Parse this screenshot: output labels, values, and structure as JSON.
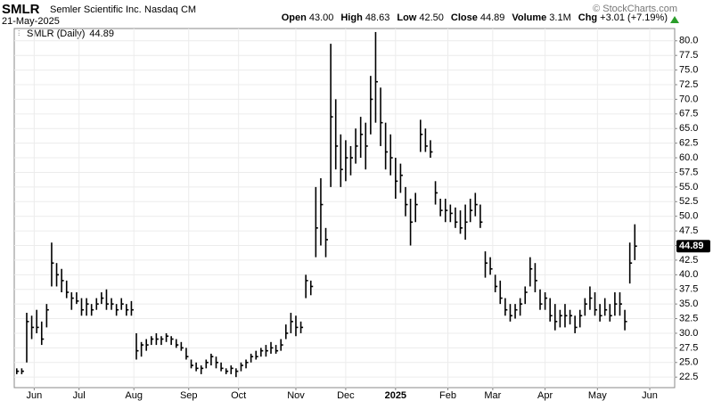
{
  "chart_data": {
    "type": "ohlc",
    "title": "SMLR",
    "subtitle": "Semler Scientific Inc.",
    "exchange": "Nasdaq CM",
    "date": "21-May-2025",
    "credit": "© StockCharts.com",
    "quote": [
      {
        "label": "Open",
        "value": "43.00"
      },
      {
        "label": "High",
        "value": "48.63"
      },
      {
        "label": "Low",
        "value": "42.50"
      },
      {
        "label": "Close",
        "value": "44.89"
      },
      {
        "label": "Volume",
        "value": "3.1M"
      },
      {
        "label": "Chg",
        "value": "+3.01 (+7.19%)"
      }
    ],
    "legend": "SMLR (Daily)",
    "color": "#000000",
    "grid": true,
    "xlim": [
      0,
      265
    ],
    "xticks": [
      {
        "value": 8,
        "label": "Jun"
      },
      {
        "value": 26,
        "label": "Jul"
      },
      {
        "value": 48,
        "label": "Aug"
      },
      {
        "value": 70,
        "label": "Sep"
      },
      {
        "value": 90,
        "label": "Oct"
      },
      {
        "value": 113,
        "label": "Nov"
      },
      {
        "value": 133,
        "label": "Dec"
      },
      {
        "value": 153,
        "label": "2025"
      },
      {
        "value": 174,
        "label": "Feb"
      },
      {
        "value": 192,
        "label": "Mar"
      },
      {
        "value": 213,
        "label": "Apr"
      },
      {
        "value": 234,
        "label": "May"
      },
      {
        "value": 255,
        "label": "Jun"
      }
    ],
    "ylim": [
      20.7,
      82.1
    ],
    "yticks": [
      22.5,
      {
        "value": 25,
        "label": "25.0"
      },
      27.5,
      {
        "value": 30,
        "label": "30.0"
      },
      32.5,
      {
        "value": 35,
        "label": "35.0"
      },
      37.5,
      {
        "value": 40,
        "label": "40.0"
      },
      42.5,
      {
        "value": 45,
        "label": "45.0"
      },
      47.5,
      {
        "value": 50,
        "label": "50.0"
      },
      52.5,
      {
        "value": 55,
        "label": "55.0"
      },
      57.5,
      {
        "value": 60,
        "label": "60.0"
      },
      62.5,
      {
        "value": 65,
        "label": "65.0"
      },
      67.5,
      {
        "value": 70,
        "label": "70.0"
      },
      72.5,
      {
        "value": 75,
        "label": "75.0"
      },
      77.5,
      {
        "value": 80,
        "label": "80.0"
      }
    ],
    "x": [
      1,
      3,
      5,
      7,
      9,
      11,
      13,
      15,
      17,
      19,
      21,
      23,
      25,
      27,
      29,
      31,
      33,
      35,
      37,
      39,
      41,
      43,
      45,
      47,
      49,
      51,
      53,
      55,
      57,
      59,
      61,
      63,
      65,
      67,
      69,
      71,
      73,
      75,
      77,
      79,
      81,
      83,
      85,
      87,
      89,
      91,
      93,
      95,
      97,
      99,
      101,
      103,
      105,
      107,
      109,
      111,
      113,
      115,
      117,
      119,
      121,
      123,
      125,
      127,
      129,
      131,
      133,
      135,
      137,
      139,
      141,
      143,
      145,
      147,
      149,
      151,
      153,
      155,
      157,
      159,
      161,
      163,
      165,
      167,
      169,
      171,
      173,
      175,
      177,
      179,
      181,
      183,
      185,
      187,
      189,
      191,
      193,
      195,
      197,
      199,
      201,
      203,
      205,
      207,
      209,
      211,
      213,
      215,
      217,
      219,
      221,
      223,
      225,
      227,
      229,
      231,
      233,
      235,
      237,
      239,
      241,
      243,
      245,
      247,
      249
    ],
    "high": [
      24,
      24,
      33.5,
      33,
      34,
      32,
      35,
      45.5,
      42,
      41,
      39,
      37,
      37,
      36,
      36,
      35,
      36,
      37,
      37.5,
      36,
      35,
      36,
      35,
      35.5,
      30,
      28.5,
      29,
      29.5,
      30,
      29.5,
      30,
      29.5,
      29,
      28.5,
      27.5,
      25.5,
      25,
      24.5,
      25.5,
      26.5,
      26,
      25,
      24,
      24.5,
      24,
      25,
      25.5,
      26.5,
      27,
      27.5,
      28,
      28.5,
      28,
      29,
      31.5,
      33.5,
      33,
      32,
      40,
      39,
      55,
      56.5,
      48,
      79.5,
      70,
      64,
      63,
      62,
      65,
      67,
      66,
      74,
      81.5,
      72,
      66,
      64,
      60,
      59,
      55,
      53,
      54,
      66.5,
      65,
      63,
      56,
      53,
      53,
      52,
      51.5,
      51,
      52,
      53,
      54,
      52,
      44,
      43,
      40,
      39,
      36,
      35,
      35,
      36,
      38,
      43,
      42,
      37.5,
      37,
      36,
      35,
      34,
      35,
      34,
      33,
      34,
      36,
      38,
      37,
      35,
      36,
      35,
      37,
      37,
      34,
      45.5,
      48.63
    ],
    "low": [
      23,
      23,
      25,
      29,
      30,
      28,
      31,
      38,
      38,
      37,
      36,
      34,
      35,
      33,
      33,
      33,
      34,
      35,
      34,
      34,
      33,
      34,
      33,
      33,
      25.5,
      26,
      27,
      28,
      28,
      28,
      28.5,
      28,
      27.5,
      27,
      25.5,
      24,
      23.5,
      23,
      24,
      24.5,
      24,
      23.5,
      23,
      23,
      22.5,
      23.5,
      24,
      25,
      25.5,
      26,
      26,
      26.5,
      26.5,
      27,
      29,
      30,
      29.5,
      30,
      36,
      36.5,
      43,
      45,
      43,
      55,
      58,
      55,
      56,
      57,
      59,
      60,
      58,
      64,
      66,
      62,
      58,
      57,
      53,
      54,
      50,
      45,
      49,
      61,
      61,
      60,
      52,
      50,
      49,
      49,
      48,
      47,
      46,
      49,
      50,
      48,
      39.5,
      40,
      37,
      35,
      33,
      32,
      32.5,
      33,
      35,
      38,
      37,
      34,
      34,
      32,
      30.5,
      31,
      31,
      31.5,
      30,
      31,
      33,
      34,
      33,
      32,
      33,
      32,
      33,
      33,
      30.5,
      38.5,
      42.5
    ],
    "close": [
      23.5,
      23.5,
      32,
      31,
      31,
      29,
      34,
      42,
      40,
      39,
      37,
      36,
      35.5,
      34,
      35,
      34,
      35,
      36,
      35,
      35,
      34,
      35,
      34,
      34,
      27,
      28,
      28,
      29,
      29,
      29,
      29.5,
      29,
      28,
      27.5,
      26,
      24.5,
      24,
      24,
      25,
      26,
      25,
      24,
      23.5,
      24,
      23.5,
      24.5,
      25,
      26,
      26,
      27,
      27,
      27.5,
      27,
      28,
      30,
      32,
      31,
      31,
      39,
      38,
      48,
      52,
      46,
      67,
      62,
      58,
      60,
      60,
      62,
      64,
      62,
      70,
      73,
      66,
      61,
      60,
      56,
      57,
      52,
      49,
      52,
      64,
      62,
      61,
      54,
      51,
      51,
      50.5,
      49,
      48,
      49,
      51,
      52,
      49,
      42,
      41,
      38,
      36,
      34,
      33,
      34,
      35,
      37,
      41,
      39,
      35,
      36,
      33,
      32,
      33,
      33,
      33,
      31,
      33,
      35,
      36,
      34,
      33,
      34,
      33,
      35,
      35,
      32,
      42,
      44.89
    ]
  }
}
